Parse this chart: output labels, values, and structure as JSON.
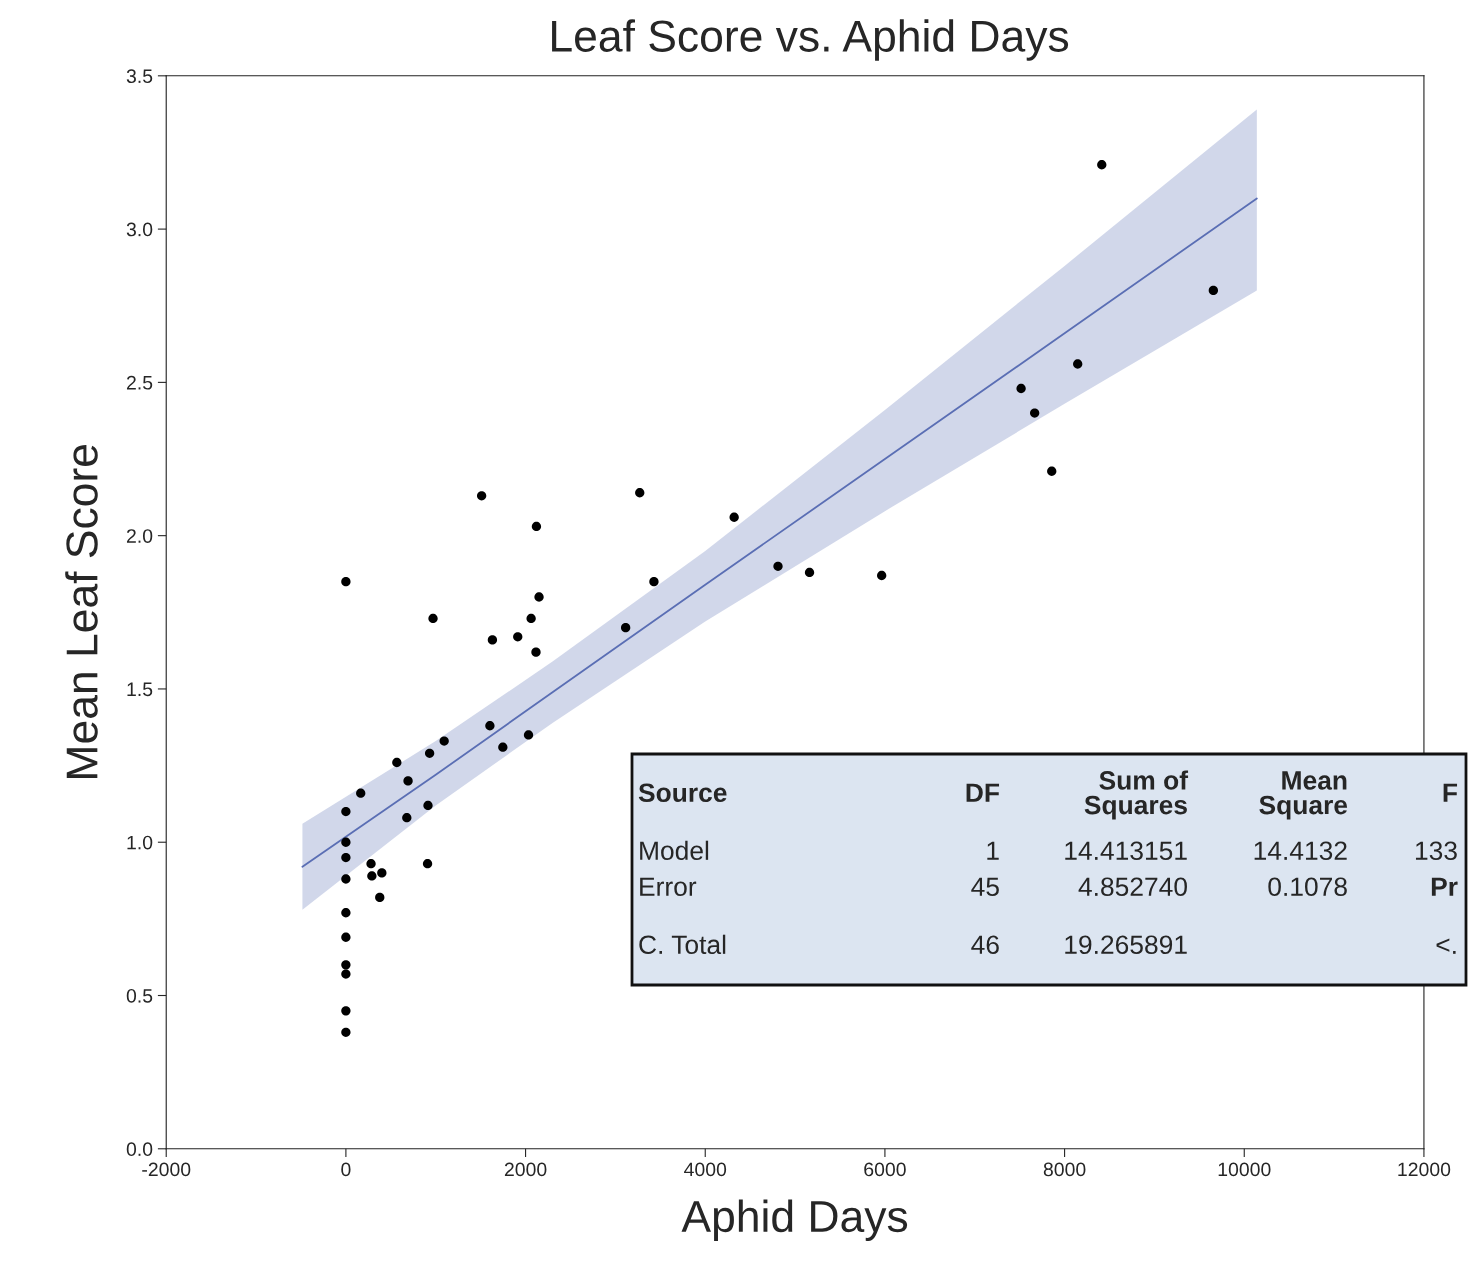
{
  "chart_data": {
    "type": "scatter",
    "title": "Leaf Score vs. Aphid Days",
    "xlabel": "Aphid Days",
    "ylabel": "Mean Leaf Score",
    "xlim": [
      -2000,
      12000
    ],
    "xticks": [
      -2000,
      0,
      2000,
      4000,
      6000,
      8000,
      10000,
      12000
    ],
    "ylim": [
      0.0,
      3.5
    ],
    "yticks": [
      {
        "value": 0,
        "label": "0.0"
      },
      0.5,
      {
        "value": 1,
        "label": "1.0"
      },
      1.5,
      {
        "value": 2,
        "label": "2.0"
      },
      2.5,
      {
        "value": 3,
        "label": "3.0"
      },
      3.5
    ],
    "grid": false,
    "legend": false,
    "marker": "circle",
    "series": [
      {
        "color": "#000000",
        "x": [
          1511,
          2121,
          0,
          970,
          2150,
          2062,
          1631,
          1913,
          2116,
          1603,
          1747,
          2033,
          1094,
          932,
          567,
          692,
          165,
          0,
          678,
          914,
          0,
          0,
          280,
          289,
          400,
          909,
          0,
          377,
          0,
          0,
          0,
          0,
          0,
          0,
          3271,
          4322,
          3429,
          4810,
          5161,
          5964,
          3114,
          8414,
          9656,
          8146,
          7516,
          7667,
          7857
        ],
        "values": [
          2.13,
          2.03,
          1.85,
          1.73,
          1.8,
          1.73,
          1.66,
          1.67,
          1.62,
          1.38,
          1.31,
          1.35,
          1.33,
          1.29,
          1.26,
          1.2,
          1.16,
          1.1,
          1.08,
          1.12,
          1.0,
          0.95,
          0.93,
          0.89,
          0.9,
          0.93,
          0.88,
          0.82,
          0.77,
          0.69,
          0.6,
          0.57,
          0.45,
          0.38,
          2.14,
          2.06,
          1.85,
          1.9,
          1.88,
          1.87,
          1.7,
          3.21,
          2.8,
          2.56,
          2.48,
          2.4,
          2.21
        ]
      },
      {
        "type": "line",
        "color": "#5a6eb4",
        "line_style": "solid",
        "marker": "none",
        "x": [
          -484,
          1000,
          2304,
          4000,
          6000,
          8000,
          10140
        ],
        "values": [
          0.92,
          1.22,
          1.49,
          1.84,
          2.25,
          2.66,
          3.1
        ],
        "lower": [
          0.78,
          1.12,
          1.39,
          1.72,
          2.08,
          2.43,
          2.8
        ],
        "upper": [
          1.06,
          1.33,
          1.59,
          1.95,
          2.41,
          2.88,
          3.39
        ]
      }
    ],
    "annotations": [
      "Source",
      "DF",
      "Sum of\nSquares",
      "Mean\nSquare",
      "F",
      "Model",
      "1",
      "14.413151",
      "14.4132",
      "133",
      "Error",
      "45",
      "4.852740",
      "0.1078",
      "Pr",
      "C. Total",
      "46",
      "19.265891",
      null,
      "<."
    ]
  }
}
